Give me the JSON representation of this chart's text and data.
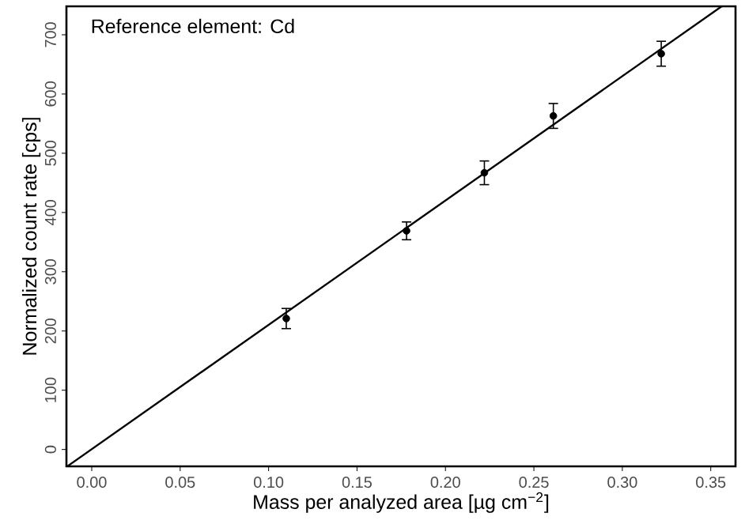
{
  "chart_data": {
    "type": "scatter",
    "xlabel": "Mass per analyzed area [µg cm$^{−2}$]",
    "ylabel": "Normalized count rate [cps]",
    "annotations": [
      "Reference element: Cd"
    ],
    "xlim": [
      -0.0143,
      0.364
    ],
    "ylim": [
      -28.5,
      748
    ],
    "xticks": [
      {
        "value": 0,
        "label": "0.00"
      },
      0.05,
      {
        "value": 0.1,
        "label": "0.10"
      },
      0.15,
      {
        "value": 0.2,
        "label": "0.20"
      },
      0.25,
      {
        "value": 0.3,
        "label": "0.30"
      },
      0.35
    ],
    "yticks": [
      0,
      100,
      200,
      300,
      400,
      500,
      600,
      700
    ],
    "grid": false,
    "series": [
      {
        "color": "#000000",
        "marker": "circle",
        "x": [
          0.11,
          0.178,
          0.222,
          0.261,
          0.322
        ],
        "values": [
          221,
          369,
          467,
          563,
          668
        ],
        "errors": [
          17,
          15,
          20,
          21,
          21
        ]
      },
      {
        "type": "line",
        "color": "#000000",
        "marker": "none",
        "line_style": "solid",
        "x": [
          -0.0136,
          0.3562
        ],
        "values": [
          -28,
          748
        ]
      }
    ]
  }
}
